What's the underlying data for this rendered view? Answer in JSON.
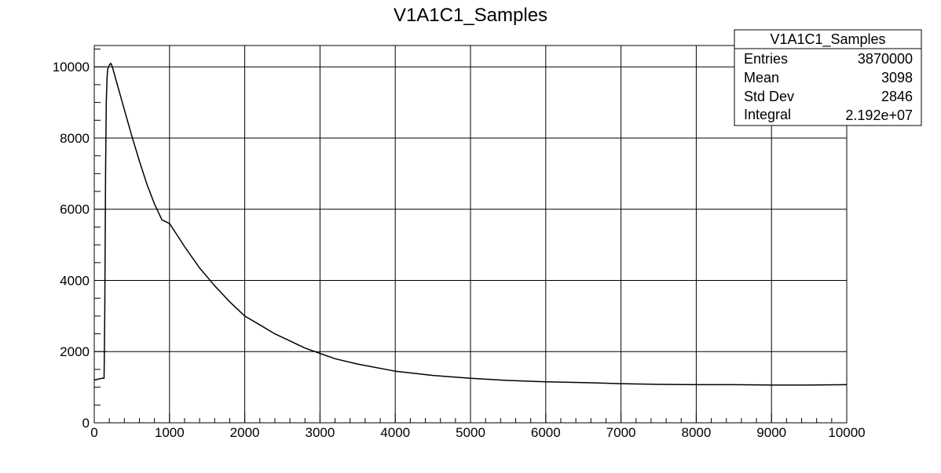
{
  "chart_data": {
    "type": "line",
    "title": "V1A1C1_Samples",
    "xlabel": "",
    "ylabel": "",
    "xlim": [
      0,
      10000
    ],
    "ylim": [
      0,
      10600
    ],
    "grid": true,
    "legend": "top-right",
    "x_ticks": [
      0,
      1000,
      2000,
      3000,
      4000,
      5000,
      6000,
      7000,
      8000,
      9000,
      10000
    ],
    "x_tick_labels": [
      "0",
      "1000",
      "2000",
      "3000",
      "4000",
      "5000",
      "6000",
      "7000",
      "8000",
      "9000",
      "10000"
    ],
    "y_ticks": [
      0,
      2000,
      4000,
      6000,
      8000,
      10000
    ],
    "y_tick_labels": [
      "0",
      "2000",
      "4000",
      "6000",
      "8000",
      "10000"
    ],
    "series": [
      {
        "x": [
          0,
          100,
          130,
          140,
          150,
          160,
          170,
          180,
          200,
          220,
          240,
          260,
          300,
          400,
          500,
          600,
          700,
          800,
          900,
          1000,
          1200,
          1400,
          1600,
          1800,
          2000,
          2200,
          2400,
          2600,
          2800,
          3000,
          3200,
          3500,
          4000,
          4500,
          5000,
          5500,
          6000,
          6500,
          7000,
          7500,
          8000,
          8500,
          9000,
          9500,
          10000
        ],
        "y": [
          1200,
          1250,
          1250,
          3100,
          7000,
          9000,
          9700,
          9950,
          10050,
          10100,
          10000,
          9850,
          9550,
          8800,
          8050,
          7350,
          6700,
          6150,
          5700,
          5600,
          4950,
          4350,
          3850,
          3400,
          3000,
          2750,
          2500,
          2300,
          2100,
          1950,
          1800,
          1650,
          1450,
          1330,
          1250,
          1190,
          1150,
          1130,
          1100,
          1080,
          1070,
          1070,
          1060,
          1060,
          1070
        ]
      }
    ]
  },
  "stats_box": {
    "title": "V1A1C1_Samples",
    "rows": [
      {
        "label": "Entries",
        "value": "3870000"
      },
      {
        "label": "Mean",
        "value": "3098"
      },
      {
        "label": "Std Dev",
        "value": "2846"
      },
      {
        "label": "Integral",
        "value": "2.192e+07"
      }
    ]
  }
}
